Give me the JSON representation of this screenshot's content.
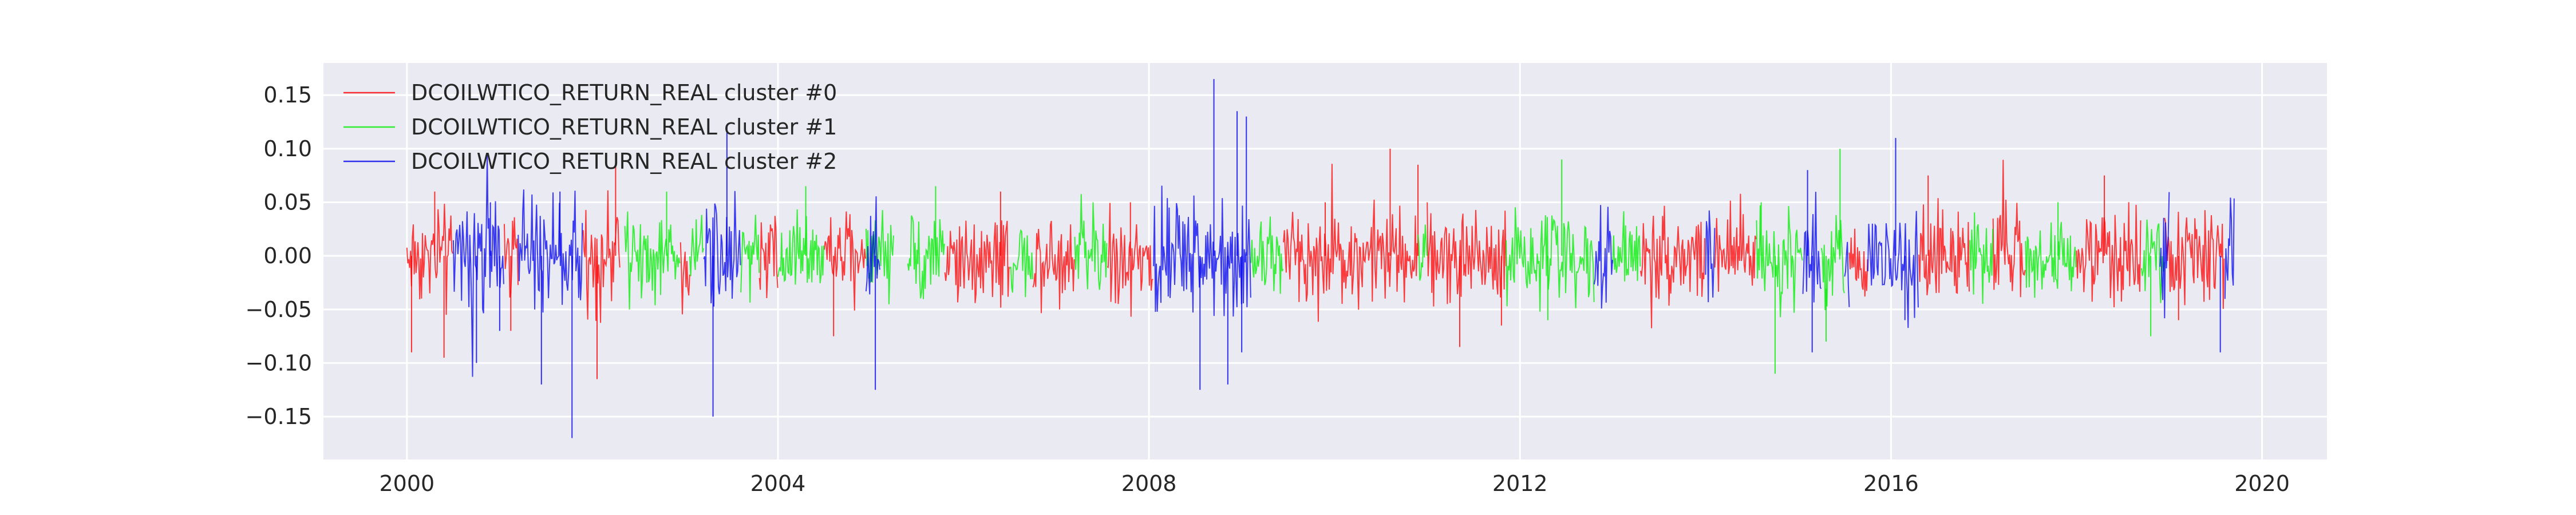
{
  "chart_data": {
    "type": "line",
    "title": "",
    "xlabel": "",
    "ylabel": "",
    "xlim": [
      1999.1,
      2020.7
    ],
    "ylim": [
      -0.19,
      0.18
    ],
    "x_ticks": [
      2000,
      2004,
      2008,
      2012,
      2016,
      2020
    ],
    "x_tick_labels": [
      "2000",
      "2004",
      "2008",
      "2012",
      "2016",
      "2020"
    ],
    "y_ticks": [
      0.15,
      0.1,
      0.05,
      0.0,
      -0.05,
      -0.1,
      -0.15
    ],
    "y_tick_labels": [
      "0.15",
      "0.10",
      "0.05",
      "0.00",
      "−0.05",
      "−0.10",
      "−0.15"
    ],
    "grid": true,
    "legend_position": "top-left",
    "background": "#eaeaf2",
    "series": [
      {
        "name": "DCOILWTICO_RETURN_REAL cluster #0",
        "color": "#ff0000",
        "segments": [
          [
            2000.0,
            2000.5
          ],
          [
            2001.05,
            2001.2
          ],
          [
            2001.9,
            2002.3
          ],
          [
            2002.95,
            2003.05
          ],
          [
            2003.8,
            2004.0
          ],
          [
            2004.5,
            2004.95
          ],
          [
            2005.8,
            2006.5
          ],
          [
            2006.75,
            2007.2
          ],
          [
            2007.55,
            2008.05
          ],
          [
            2009.45,
            2010.9
          ],
          [
            2011.0,
            2011.85
          ],
          [
            2013.3,
            2014.0
          ],
          [
            2014.1,
            2014.55
          ],
          [
            2015.55,
            2015.75
          ],
          [
            2016.3,
            2016.85
          ],
          [
            2017.1,
            2017.45
          ],
          [
            2018.0,
            2018.7
          ],
          [
            2018.95,
            2019.6
          ]
        ],
        "peaks": [
          {
            "x": 2000.05,
            "y": -0.09
          },
          {
            "x": 2000.3,
            "y": 0.06
          },
          {
            "x": 2000.4,
            "y": -0.095
          },
          {
            "x": 2001.12,
            "y": -0.07
          },
          {
            "x": 2002.05,
            "y": -0.115
          },
          {
            "x": 2002.25,
            "y": 0.085
          },
          {
            "x": 2004.6,
            "y": -0.075
          },
          {
            "x": 2006.4,
            "y": 0.06
          },
          {
            "x": 2007.8,
            "y": 0.05
          },
          {
            "x": 2009.9,
            "y": 0.05
          },
          {
            "x": 2010.6,
            "y": 0.1
          },
          {
            "x": 2010.9,
            "y": 0.085
          },
          {
            "x": 2011.35,
            "y": -0.085
          },
          {
            "x": 2011.8,
            "y": -0.065
          },
          {
            "x": 2016.4,
            "y": 0.075
          },
          {
            "x": 2018.3,
            "y": 0.075
          },
          {
            "x": 2019.1,
            "y": -0.06
          }
        ],
        "amplitude": 0.028
      },
      {
        "name": "DCOILWTICO_RETURN_REAL cluster #1",
        "color": "#00ee00",
        "segments": [
          [
            2002.35,
            2002.95
          ],
          [
            2003.05,
            2003.2
          ],
          [
            2003.6,
            2003.8
          ],
          [
            2004.0,
            2004.5
          ],
          [
            2004.95,
            2005.25
          ],
          [
            2005.4,
            2005.8
          ],
          [
            2006.5,
            2006.75
          ],
          [
            2007.2,
            2007.55
          ],
          [
            2009.1,
            2009.45
          ],
          [
            2010.9,
            2011.0
          ],
          [
            2011.85,
            2012.8
          ],
          [
            2013.0,
            2013.3
          ],
          [
            2014.55,
            2015.05
          ],
          [
            2015.25,
            2015.5
          ],
          [
            2016.85,
            2017.1
          ],
          [
            2017.45,
            2018.0
          ],
          [
            2018.7,
            2018.95
          ]
        ],
        "peaks": [
          {
            "x": 2002.8,
            "y": 0.06
          },
          {
            "x": 2004.3,
            "y": 0.065
          },
          {
            "x": 2005.7,
            "y": 0.065
          },
          {
            "x": 2012.45,
            "y": 0.09
          },
          {
            "x": 2012.3,
            "y": -0.06
          },
          {
            "x": 2014.6,
            "y": 0.05
          },
          {
            "x": 2014.75,
            "y": -0.11
          },
          {
            "x": 2015.45,
            "y": 0.1
          },
          {
            "x": 2015.3,
            "y": -0.08
          },
          {
            "x": 2018.8,
            "y": -0.075
          },
          {
            "x": 2017.8,
            "y": 0.05
          }
        ],
        "amplitude": 0.024
      },
      {
        "name": "DCOILWTICO_RETURN_REAL cluster #2",
        "color": "#0000ee",
        "segments": [
          [
            2000.5,
            2001.05
          ],
          [
            2001.2,
            2001.9
          ],
          [
            2003.2,
            2003.6
          ],
          [
            2004.95,
            2005.1
          ],
          [
            2008.05,
            2009.1
          ],
          [
            2012.8,
            2013.0
          ],
          [
            2014.0,
            2014.1
          ],
          [
            2015.05,
            2015.25
          ],
          [
            2015.5,
            2015.55
          ],
          [
            2015.75,
            2016.3
          ],
          [
            2018.9,
            2019.0
          ],
          [
            2019.6,
            2019.7
          ]
        ],
        "peaks": [
          {
            "x": 2000.75,
            "y": -0.1
          },
          {
            "x": 2000.9,
            "y": 0.05
          },
          {
            "x": 2001.0,
            "y": -0.07
          },
          {
            "x": 2001.45,
            "y": -0.12
          },
          {
            "x": 2001.65,
            "y": 0.06
          },
          {
            "x": 2001.78,
            "y": -0.17
          },
          {
            "x": 2003.3,
            "y": -0.15
          },
          {
            "x": 2003.45,
            "y": 0.12
          },
          {
            "x": 2005.05,
            "y": -0.125
          },
          {
            "x": 2008.55,
            "y": -0.125
          },
          {
            "x": 2008.7,
            "y": 0.165
          },
          {
            "x": 2008.85,
            "y": -0.12
          },
          {
            "x": 2008.95,
            "y": 0.135
          },
          {
            "x": 2009.05,
            "y": 0.13
          },
          {
            "x": 2009.0,
            "y": -0.09
          },
          {
            "x": 2015.15,
            "y": -0.09
          },
          {
            "x": 2015.1,
            "y": 0.08
          },
          {
            "x": 2016.05,
            "y": 0.11
          },
          {
            "x": 2016.15,
            "y": -0.06
          },
          {
            "x": 2019.55,
            "y": -0.09
          }
        ],
        "amplitude": 0.032
      }
    ]
  }
}
